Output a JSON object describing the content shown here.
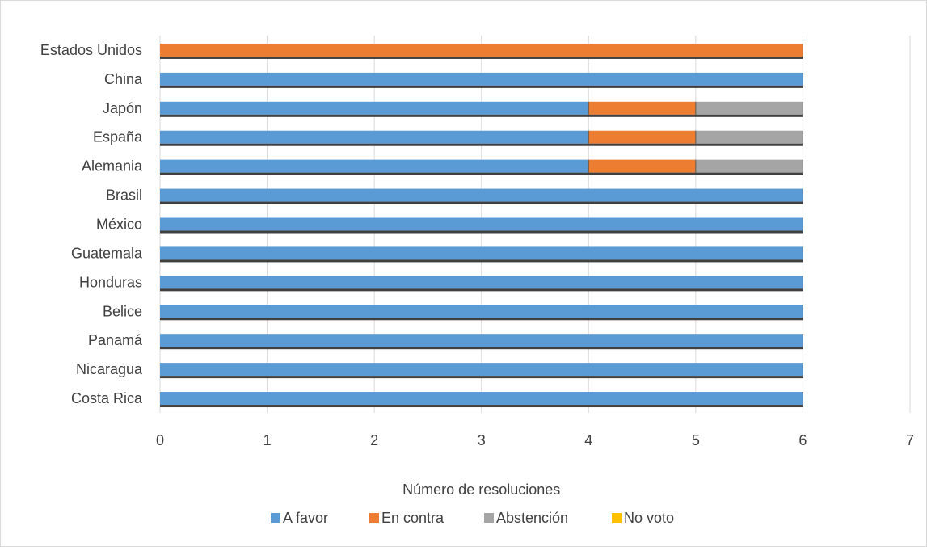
{
  "chart_data": {
    "type": "bar",
    "orientation": "horizontal",
    "stacked": true,
    "title": "",
    "xlabel": "Número de resoluciones",
    "ylabel": "",
    "xlim": [
      0,
      7
    ],
    "x_ticks": [
      0,
      1,
      2,
      3,
      4,
      5,
      6,
      7
    ],
    "grid": "vertical",
    "legend_position": "bottom",
    "categories": [
      "Estados Unidos",
      "China",
      "Japón",
      "España",
      "Alemania",
      "Brasil",
      "México",
      "Guatemala",
      "Honduras",
      "Belice",
      "Panamá",
      "Nicaragua",
      "Costa Rica"
    ],
    "series": [
      {
        "name": "A favor",
        "color": "#5b9bd5",
        "values": [
          0,
          6,
          4,
          4,
          4,
          6,
          6,
          6,
          6,
          6,
          6,
          6,
          6
        ]
      },
      {
        "name": "En contra",
        "color": "#ed7d31",
        "values": [
          6,
          0,
          1,
          1,
          1,
          0,
          0,
          0,
          0,
          0,
          0,
          0,
          0
        ]
      },
      {
        "name": "Abstención",
        "color": "#a5a5a5",
        "values": [
          0,
          0,
          1,
          1,
          1,
          0,
          0,
          0,
          0,
          0,
          0,
          0,
          0
        ]
      },
      {
        "name": "No voto",
        "color": "#ffc000",
        "values": [
          0,
          0,
          0,
          0,
          0,
          0,
          0,
          0,
          0,
          0,
          0,
          0,
          0
        ]
      }
    ]
  }
}
